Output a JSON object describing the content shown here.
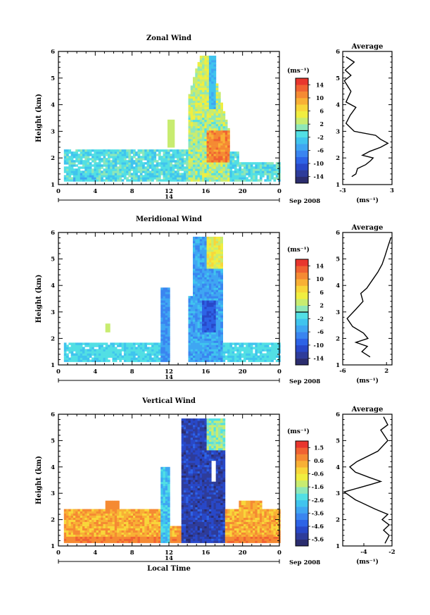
{
  "chart_data": [
    {
      "type": "heatmap",
      "title": "Zonal Wind",
      "ylabel": "Height (km)",
      "xlim": [
        0,
        24
      ],
      "ylim": [
        1,
        6
      ],
      "x_ticks": [
        "0",
        "4",
        "8",
        "12",
        "16",
        "20",
        "0"
      ],
      "y_ticks": [
        "1",
        "2",
        "3",
        "4",
        "5",
        "6"
      ],
      "date_day": "14",
      "date_month_year": "Sep 2008",
      "colorbar": {
        "unit": "(ms⁻¹)",
        "range": [
          -16,
          16
        ],
        "tick_labels": [
          "14",
          "10",
          "6",
          "2",
          "-2",
          "-6",
          "-10",
          "-14"
        ],
        "zero_line": 0
      },
      "avg_profile": {
        "title": "Average",
        "unit": "(ms⁻¹)",
        "xlim": [
          -3,
          3
        ],
        "x_ticks": [
          "-3",
          "3"
        ],
        "points": [
          [
            -1.9,
            1.3
          ],
          [
            -1.4,
            1.4
          ],
          [
            -1.2,
            1.6
          ],
          [
            -0.2,
            1.75
          ],
          [
            0.4,
            1.9
          ],
          [
            0.7,
            2.0
          ],
          [
            -0.6,
            2.1
          ],
          [
            0.3,
            2.25
          ],
          [
            1.6,
            2.4
          ],
          [
            2.5,
            2.55
          ],
          [
            1.6,
            2.7
          ],
          [
            1.0,
            2.85
          ],
          [
            -1.6,
            3.0
          ],
          [
            -2.6,
            3.3
          ],
          [
            -2.1,
            3.6
          ],
          [
            -1.4,
            3.9
          ],
          [
            -2.6,
            4.1
          ],
          [
            -2.0,
            4.5
          ],
          [
            -2.8,
            4.9
          ],
          [
            -2.0,
            5.1
          ],
          [
            -2.7,
            5.3
          ],
          [
            -1.6,
            5.6
          ],
          [
            -2.6,
            5.8
          ]
        ]
      }
    },
    {
      "type": "heatmap",
      "title": "Meridional Wind",
      "ylabel": "Height (km)",
      "xlim": [
        0,
        24
      ],
      "ylim": [
        1,
        6
      ],
      "x_ticks": [
        "0",
        "4",
        "8",
        "12",
        "16",
        "20",
        "0"
      ],
      "y_ticks": [
        "1",
        "2",
        "3",
        "4",
        "5",
        "6"
      ],
      "date_day": "14",
      "date_month_year": "Sep 2008",
      "colorbar": {
        "unit": "(ms⁻¹)",
        "range": [
          -16,
          16
        ],
        "tick_labels": [
          "14",
          "10",
          "6",
          "2",
          "-2",
          "-6",
          "-10",
          "-14"
        ],
        "zero_line": 0
      },
      "avg_profile": {
        "title": "Average",
        "unit": "(ms⁻¹)",
        "xlim": [
          -6,
          3
        ],
        "x_ticks": [
          "-6",
          "2"
        ],
        "points": [
          [
            -1.0,
            1.3
          ],
          [
            -2.5,
            1.5
          ],
          [
            -1.5,
            1.7
          ],
          [
            -3.6,
            1.85
          ],
          [
            -1.4,
            2.0
          ],
          [
            -2.2,
            2.2
          ],
          [
            -4.2,
            2.45
          ],
          [
            -5.2,
            2.75
          ],
          [
            -3.6,
            3.1
          ],
          [
            -2.3,
            3.4
          ],
          [
            -2.7,
            3.7
          ],
          [
            -1.6,
            3.9
          ],
          [
            -0.6,
            4.2
          ],
          [
            0.4,
            4.5
          ],
          [
            1.2,
            4.8
          ],
          [
            1.7,
            5.1
          ],
          [
            2.3,
            5.5
          ],
          [
            2.8,
            5.8
          ]
        ]
      }
    },
    {
      "type": "heatmap",
      "title": "Vertical Wind",
      "ylabel": "Height (km)",
      "xlabel": "Local Time",
      "xlim": [
        0,
        24
      ],
      "ylim": [
        1,
        6
      ],
      "x_ticks": [
        "0",
        "4",
        "8",
        "12",
        "16",
        "20",
        "0"
      ],
      "y_ticks": [
        "1",
        "2",
        "3",
        "4",
        "5",
        "6"
      ],
      "date_day": "14",
      "date_month_year": "Sep 2008",
      "colorbar": {
        "unit": "(ms⁻¹)",
        "range": [
          -6,
          2
        ],
        "tick_labels": [
          "1.5",
          "0.6",
          "-0.6",
          "-1.6",
          "-2.6",
          "-3.6",
          "-4.6",
          "-5.6"
        ],
        "zero_line": null
      },
      "avg_profile": {
        "title": "Average",
        "unit": "(ms⁻¹)",
        "xlim": [
          -5.5,
          -2
        ],
        "x_ticks": [
          "-4",
          "-2"
        ],
        "points": [
          [
            -2.5,
            1.1
          ],
          [
            -2.2,
            1.4
          ],
          [
            -2.6,
            1.6
          ],
          [
            -2.2,
            1.8
          ],
          [
            -2.7,
            2.0
          ],
          [
            -2.3,
            2.2
          ],
          [
            -3.2,
            2.4
          ],
          [
            -4.6,
            2.75
          ],
          [
            -5.4,
            3.05
          ],
          [
            -3.4,
            3.35
          ],
          [
            -2.8,
            3.45
          ],
          [
            -3.6,
            3.6
          ],
          [
            -4.6,
            3.8
          ],
          [
            -5.0,
            4.0
          ],
          [
            -4.5,
            4.2
          ],
          [
            -3.0,
            4.6
          ],
          [
            -2.3,
            5.0
          ],
          [
            -2.8,
            5.4
          ],
          [
            -2.3,
            5.6
          ],
          [
            -2.6,
            5.9
          ]
        ]
      }
    }
  ]
}
